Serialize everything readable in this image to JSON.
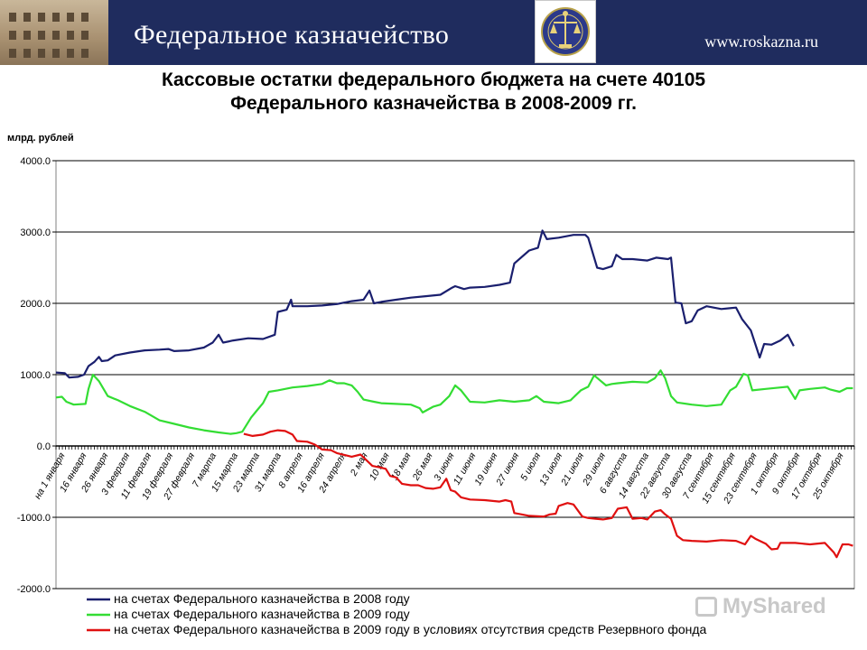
{
  "header": {
    "org_name": "Федеральное казначейство",
    "url": "www.roskazna.ru"
  },
  "title": {
    "line1": "Кассовые остатки федерального бюджета на счете 40105",
    "line2": "Федерального казначейства в 2008-2009 гг."
  },
  "watermark": "MyShared",
  "colors": {
    "header_bg": "#1f2c5e",
    "series_2008": "#1a1f6e",
    "series_2009": "#33dd33",
    "series_2009_no_reserve": "#e01010"
  },
  "chart_data": {
    "type": "line",
    "title": "Кассовые остатки федерального бюджета на счете 40105 Федерального казначейства в 2008-2009 гг.",
    "ylabel": "млрд. рублей",
    "ylim": [
      -2000,
      4000
    ],
    "yticks": [
      "4000.0",
      "3000.0",
      "2000.0",
      "1000.0",
      "0.0",
      "-1000.0",
      "-2000.0"
    ],
    "ytick_values": [
      4000,
      3000,
      2000,
      1000,
      0,
      -1000,
      -2000
    ],
    "x_tick_labels": [
      "на 1 января",
      "16 января",
      "26 января",
      "3 февраля",
      "11 февраля",
      "19 февраля",
      "27 февраля",
      "7 марта",
      "15 марта",
      "23 марта",
      "31 марта",
      "8 апреля",
      "16 апреля",
      "24 апреля",
      "2 мая",
      "10 мая",
      "18 мая",
      "26 мая",
      "3 июня",
      "11 июня",
      "19 июня",
      "27 июня",
      "5 июля",
      "13 июля",
      "21 июля",
      "29 июля",
      "6 августа",
      "14 августа",
      "22 августа",
      "30 августа",
      "7 сентября",
      "15 сентября",
      "23 сентября",
      "1 октября",
      "9 октября",
      "17 октября",
      "25 октября"
    ],
    "grid": true,
    "legend_position": "bottom",
    "series": [
      {
        "name": "на счетах Федерального казначейства в 2008 году",
        "color": "#1a1f6e",
        "points": [
          [
            0,
            1030
          ],
          [
            0.6,
            1020
          ],
          [
            0.9,
            960
          ],
          [
            1.5,
            970
          ],
          [
            1.9,
            1000
          ],
          [
            2.2,
            1120
          ],
          [
            2.6,
            1180
          ],
          [
            2.9,
            1250
          ],
          [
            3.1,
            1190
          ],
          [
            3.5,
            1200
          ],
          [
            4,
            1270
          ],
          [
            5,
            1310
          ],
          [
            6,
            1340
          ],
          [
            7,
            1350
          ],
          [
            7.6,
            1360
          ],
          [
            8,
            1330
          ],
          [
            9,
            1340
          ],
          [
            10,
            1380
          ],
          [
            10.6,
            1450
          ],
          [
            11,
            1560
          ],
          [
            11.3,
            1450
          ],
          [
            12,
            1480
          ],
          [
            13,
            1510
          ],
          [
            14,
            1500
          ],
          [
            14.8,
            1560
          ],
          [
            15,
            1880
          ],
          [
            15.6,
            1910
          ],
          [
            15.9,
            2050
          ],
          [
            16,
            1960
          ],
          [
            17,
            1960
          ],
          [
            18,
            1970
          ],
          [
            19,
            1990
          ],
          [
            20,
            2030
          ],
          [
            20.8,
            2050
          ],
          [
            21.2,
            2180
          ],
          [
            21.5,
            2000
          ],
          [
            22,
            2020
          ],
          [
            23,
            2050
          ],
          [
            24,
            2080
          ],
          [
            25,
            2100
          ],
          [
            26,
            2120
          ],
          [
            26.8,
            2220
          ],
          [
            27,
            2240
          ],
          [
            27.6,
            2200
          ],
          [
            28,
            2220
          ],
          [
            29,
            2230
          ],
          [
            30,
            2260
          ],
          [
            30.7,
            2290
          ],
          [
            31,
            2560
          ],
          [
            32,
            2740
          ],
          [
            32.6,
            2780
          ],
          [
            32.9,
            3020
          ],
          [
            33.2,
            2900
          ],
          [
            34,
            2920
          ],
          [
            35,
            2960
          ],
          [
            35.8,
            2960
          ],
          [
            36,
            2920
          ],
          [
            36.6,
            2500
          ],
          [
            37,
            2480
          ],
          [
            37.6,
            2520
          ],
          [
            37.9,
            2680
          ],
          [
            38.3,
            2620
          ],
          [
            39,
            2620
          ],
          [
            40,
            2600
          ],
          [
            40.6,
            2640
          ],
          [
            41.4,
            2620
          ],
          [
            41.6,
            2640
          ],
          [
            41.9,
            2010
          ],
          [
            42.3,
            2000
          ],
          [
            42.6,
            1720
          ],
          [
            43,
            1750
          ],
          [
            43.4,
            1900
          ],
          [
            44,
            1960
          ],
          [
            45,
            1920
          ],
          [
            45.5,
            1930
          ],
          [
            46,
            1940
          ],
          [
            46.4,
            1780
          ],
          [
            47,
            1620
          ],
          [
            47.6,
            1240
          ],
          [
            47.9,
            1430
          ],
          [
            48.4,
            1420
          ],
          [
            49,
            1480
          ],
          [
            49.5,
            1560
          ],
          [
            49.9,
            1400
          ]
        ]
      },
      {
        "name": "на счетах  Федерального казначейства  в 2009 году",
        "color": "#33dd33",
        "points": [
          [
            0,
            680
          ],
          [
            0.4,
            690
          ],
          [
            0.7,
            620
          ],
          [
            1.2,
            580
          ],
          [
            2,
            590
          ],
          [
            2.2,
            800
          ],
          [
            2.5,
            1000
          ],
          [
            2.9,
            910
          ],
          [
            3.5,
            700
          ],
          [
            4.2,
            640
          ],
          [
            5,
            560
          ],
          [
            6,
            480
          ],
          [
            7,
            360
          ],
          [
            8,
            310
          ],
          [
            9,
            260
          ],
          [
            10,
            220
          ],
          [
            11,
            190
          ],
          [
            11.8,
            170
          ],
          [
            12.2,
            180
          ],
          [
            12.6,
            200
          ],
          [
            13.2,
            400
          ],
          [
            13.6,
            500
          ],
          [
            14,
            600
          ],
          [
            14.4,
            760
          ],
          [
            15,
            780
          ],
          [
            16,
            820
          ],
          [
            17,
            840
          ],
          [
            18,
            870
          ],
          [
            18.5,
            920
          ],
          [
            19,
            880
          ],
          [
            19.5,
            880
          ],
          [
            20,
            850
          ],
          [
            20.4,
            760
          ],
          [
            20.8,
            650
          ],
          [
            21.5,
            620
          ],
          [
            22,
            600
          ],
          [
            23,
            590
          ],
          [
            24,
            580
          ],
          [
            24.6,
            530
          ],
          [
            24.8,
            470
          ],
          [
            25.5,
            550
          ],
          [
            26,
            580
          ],
          [
            26.6,
            700
          ],
          [
            27,
            850
          ],
          [
            27.4,
            780
          ],
          [
            28,
            620
          ],
          [
            29,
            610
          ],
          [
            30,
            640
          ],
          [
            31,
            620
          ],
          [
            32,
            640
          ],
          [
            32.5,
            700
          ],
          [
            33,
            620
          ],
          [
            34,
            600
          ],
          [
            34.8,
            640
          ],
          [
            35.5,
            780
          ],
          [
            36,
            830
          ],
          [
            36.4,
            990
          ],
          [
            36.8,
            920
          ],
          [
            37.2,
            850
          ],
          [
            37.6,
            870
          ],
          [
            38,
            880
          ],
          [
            39,
            900
          ],
          [
            40,
            890
          ],
          [
            40.5,
            950
          ],
          [
            40.9,
            1060
          ],
          [
            41.2,
            950
          ],
          [
            41.6,
            700
          ],
          [
            42,
            610
          ],
          [
            43,
            580
          ],
          [
            44,
            560
          ],
          [
            45,
            580
          ],
          [
            45.6,
            780
          ],
          [
            46,
            830
          ],
          [
            46.5,
            1010
          ],
          [
            46.8,
            990
          ],
          [
            47.1,
            780
          ],
          [
            48,
            800
          ],
          [
            49,
            820
          ],
          [
            49.5,
            830
          ],
          [
            50,
            660
          ],
          [
            50.3,
            780
          ],
          [
            51,
            800
          ],
          [
            52,
            820
          ],
          [
            52.4,
            790
          ],
          [
            53,
            760
          ],
          [
            53.5,
            810
          ],
          [
            53.9,
            810
          ]
        ]
      },
      {
        "name": "на счетах Федерального казначейства в 2009 году в условиях отсутствия средств Резервного фонда",
        "color": "#e01010",
        "points": [
          [
            12.7,
            170
          ],
          [
            13.3,
            140
          ],
          [
            14,
            160
          ],
          [
            14.5,
            200
          ],
          [
            15,
            220
          ],
          [
            15.5,
            210
          ],
          [
            16,
            160
          ],
          [
            16.3,
            70
          ],
          [
            17,
            60
          ],
          [
            17.5,
            20
          ],
          [
            18,
            -50
          ],
          [
            18.6,
            -60
          ],
          [
            19,
            -100
          ],
          [
            19.6,
            -130
          ],
          [
            20,
            -150
          ],
          [
            20.6,
            -120
          ],
          [
            21,
            -200
          ],
          [
            21.4,
            -280
          ],
          [
            21.9,
            -300
          ],
          [
            22.3,
            -320
          ],
          [
            22.6,
            -420
          ],
          [
            23,
            -440
          ],
          [
            23.4,
            -530
          ],
          [
            24,
            -550
          ],
          [
            24.5,
            -550
          ],
          [
            25,
            -590
          ],
          [
            25.5,
            -600
          ],
          [
            26,
            -580
          ],
          [
            26.4,
            -460
          ],
          [
            26.7,
            -620
          ],
          [
            27,
            -640
          ],
          [
            27.4,
            -720
          ],
          [
            28,
            -750
          ],
          [
            29,
            -760
          ],
          [
            30,
            -780
          ],
          [
            30.4,
            -760
          ],
          [
            30.8,
            -780
          ],
          [
            31,
            -940
          ],
          [
            31.5,
            -960
          ],
          [
            32,
            -980
          ],
          [
            33,
            -990
          ],
          [
            33.4,
            -960
          ],
          [
            33.8,
            -950
          ],
          [
            34,
            -840
          ],
          [
            34.6,
            -800
          ],
          [
            35,
            -820
          ],
          [
            35.6,
            -990
          ],
          [
            36,
            -1010
          ],
          [
            36.5,
            -1020
          ],
          [
            37,
            -1030
          ],
          [
            37.6,
            -1010
          ],
          [
            38,
            -880
          ],
          [
            38.6,
            -860
          ],
          [
            39,
            -1020
          ],
          [
            39.6,
            -1010
          ],
          [
            40,
            -1030
          ],
          [
            40.5,
            -920
          ],
          [
            40.9,
            -900
          ],
          [
            41.2,
            -960
          ],
          [
            41.6,
            -1020
          ],
          [
            42,
            -1260
          ],
          [
            42.4,
            -1320
          ],
          [
            43,
            -1330
          ],
          [
            44,
            -1340
          ],
          [
            45,
            -1320
          ],
          [
            46,
            -1330
          ],
          [
            46.6,
            -1380
          ],
          [
            47,
            -1260
          ],
          [
            47.3,
            -1300
          ],
          [
            48,
            -1370
          ],
          [
            48.4,
            -1450
          ],
          [
            48.8,
            -1440
          ],
          [
            49,
            -1360
          ],
          [
            50,
            -1360
          ],
          [
            51,
            -1380
          ],
          [
            52,
            -1360
          ],
          [
            52.6,
            -1490
          ],
          [
            52.8,
            -1560
          ],
          [
            53.2,
            -1380
          ],
          [
            53.6,
            -1380
          ],
          [
            53.9,
            -1400
          ]
        ]
      }
    ]
  }
}
